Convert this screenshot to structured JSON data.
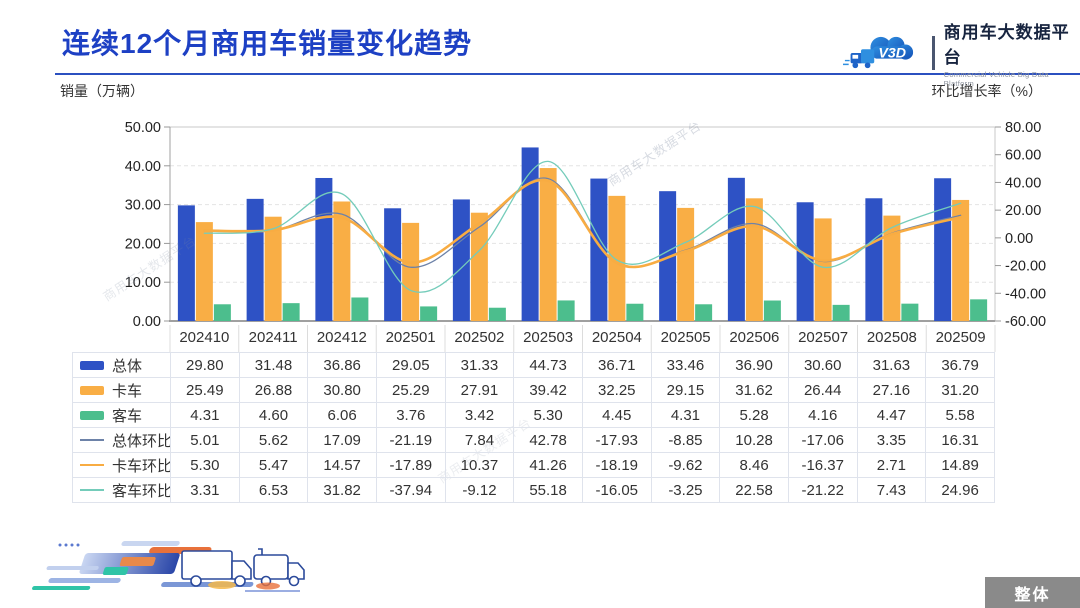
{
  "header": {
    "title": "连续12个月商用车销量变化趋势",
    "logo": {
      "mark": "V3D",
      "platform_cn": "商用车大数据平台",
      "platform_en": "Commercial Vehicle Big Data Platform"
    }
  },
  "chart_data": {
    "type": "combo-bar-line",
    "title": "连续12个月商用车销量变化趋势",
    "categories": [
      "202410",
      "202411",
      "202412",
      "202501",
      "202502",
      "202503",
      "202504",
      "202505",
      "202506",
      "202507",
      "202508",
      "202509"
    ],
    "left_axis": {
      "label": "销量（万辆）",
      "min": 0,
      "max": 50,
      "step": 10
    },
    "right_axis": {
      "label": "环比增长率（%）",
      "min": -60,
      "max": 80,
      "step": 20
    },
    "grid": "dashed-horizontal",
    "legend_position": "table-left",
    "series": [
      {
        "name": "总体",
        "type": "bar",
        "axis": "left",
        "color": "#2e52c5",
        "values": [
          29.8,
          31.48,
          36.86,
          29.05,
          31.33,
          44.73,
          36.71,
          33.46,
          36.9,
          30.6,
          31.63,
          36.79
        ]
      },
      {
        "name": "卡车",
        "type": "bar",
        "axis": "left",
        "color": "#f9ae45",
        "values": [
          25.49,
          26.88,
          30.8,
          25.29,
          27.91,
          39.42,
          32.25,
          29.15,
          31.62,
          26.44,
          27.16,
          31.2
        ]
      },
      {
        "name": "客车",
        "type": "bar",
        "axis": "left",
        "color": "#4cbe8d",
        "values": [
          4.31,
          4.6,
          6.06,
          3.76,
          3.42,
          5.3,
          4.45,
          4.31,
          5.28,
          4.16,
          4.47,
          5.58
        ]
      },
      {
        "name": "总体环比",
        "type": "line",
        "axis": "right",
        "color": "#6d82a8",
        "line_width": 1.3,
        "values": [
          5.01,
          5.62,
          17.09,
          -21.19,
          7.84,
          42.78,
          -17.93,
          -8.85,
          10.28,
          -17.06,
          3.35,
          16.31
        ]
      },
      {
        "name": "卡车环比",
        "type": "line",
        "axis": "right",
        "color": "#f8ac42",
        "line_width": 2.6,
        "values": [
          5.3,
          5.47,
          14.57,
          -17.89,
          10.37,
          41.26,
          -18.19,
          -9.62,
          8.46,
          -16.37,
          2.71,
          14.89
        ]
      },
      {
        "name": "客车环比",
        "type": "line",
        "axis": "right",
        "color": "#74ccba",
        "line_width": 1.3,
        "values": [
          3.31,
          6.53,
          31.82,
          -37.94,
          -9.12,
          55.18,
          -16.05,
          -3.25,
          22.58,
          -21.22,
          7.43,
          24.96
        ]
      }
    ],
    "watermark": "商用车大数据平台"
  },
  "footer": {
    "overall_button": "整体"
  }
}
